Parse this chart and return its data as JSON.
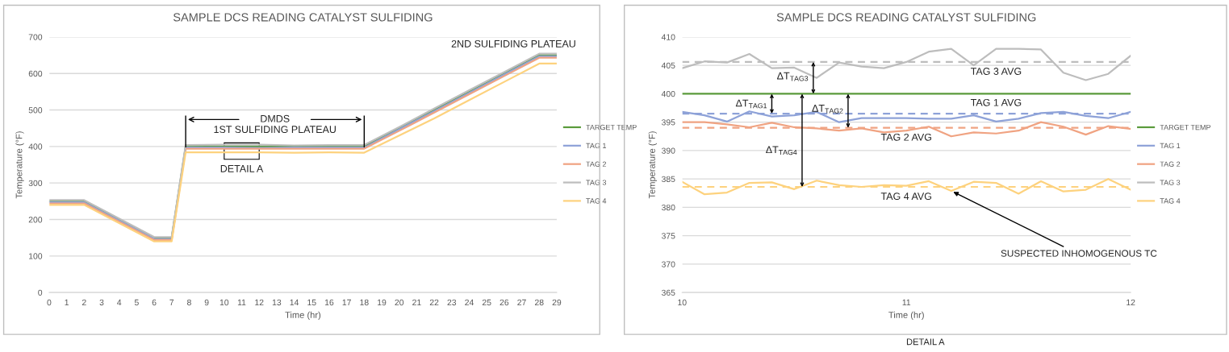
{
  "chart_data": [
    {
      "type": "line",
      "title": "SAMPLE DCS READING CATALYST SULFIDING",
      "xlabel": "Time (hr)",
      "ylabel": "Temperature (°F)",
      "x": [
        0,
        2,
        6,
        7,
        7.8,
        10,
        12,
        14,
        16,
        18,
        20,
        22,
        24,
        26,
        28,
        29
      ],
      "series": [
        {
          "name": "TARGET TEMP",
          "color": "#5b9b3c",
          "values": [
            250,
            250,
            150,
            150,
            400,
            400,
            400,
            400,
            400,
            400,
            450,
            500,
            550,
            600,
            650,
            650
          ]
        },
        {
          "name": "TAG 1",
          "color": "#8ea2d8",
          "values": [
            247,
            247,
            147,
            147,
            397,
            397,
            396,
            397,
            397,
            397,
            447,
            497,
            547,
            597,
            647,
            647
          ]
        },
        {
          "name": "TAG 2",
          "color": "#f0a382",
          "values": [
            244,
            244,
            144,
            144,
            394,
            394,
            394,
            394,
            394,
            394,
            443,
            493,
            543,
            593,
            643,
            643
          ]
        },
        {
          "name": "TAG 3",
          "color": "#bdbdbd",
          "values": [
            253,
            253,
            152,
            152,
            404,
            405,
            405,
            403,
            404,
            404,
            453,
            504,
            554,
            604,
            654,
            654
          ]
        },
        {
          "name": "TAG 4",
          "color": "#fdd27e",
          "values": [
            240,
            240,
            140,
            140,
            384,
            384,
            384,
            383,
            384,
            383,
            430,
            477,
            527,
            577,
            627,
            627
          ]
        }
      ],
      "xlim": [
        0,
        29
      ],
      "xticks": [
        0,
        1,
        2,
        3,
        4,
        5,
        6,
        7,
        8,
        9,
        10,
        11,
        12,
        13,
        14,
        15,
        16,
        17,
        18,
        19,
        20,
        21,
        22,
        23,
        24,
        25,
        26,
        27,
        28,
        29
      ],
      "ylim": [
        0,
        700
      ],
      "yticks": [
        0,
        100,
        200,
        300,
        400,
        500,
        600,
        700
      ],
      "annotations": [
        "DMDS",
        "1ST SULFIDING PLATEAU",
        "2ND SULFIDING PLATEAU",
        "DETAIL A"
      ],
      "grid": "y",
      "legend": "right",
      "marker": "none",
      "line_style": "solid"
    },
    {
      "type": "line",
      "title": "SAMPLE DCS READING CATALYST SULFIDING",
      "xlabel": "Time (hr)",
      "ylabel": "Temperature (°F)",
      "x": [
        10,
        10.1,
        10.2,
        10.3,
        10.4,
        10.5,
        10.6,
        10.7,
        10.8,
        10.9,
        11,
        11.1,
        11.2,
        11.3,
        11.4,
        11.5,
        11.6,
        11.7,
        11.8,
        11.9,
        12
      ],
      "series": [
        {
          "name": "TARGET TEMP",
          "color": "#5b9b3c",
          "values": [
            400,
            400,
            400,
            400,
            400,
            400,
            400,
            400,
            400,
            400,
            400,
            400,
            400,
            400,
            400,
            400,
            400,
            400,
            400,
            400,
            400
          ]
        },
        {
          "name": "TAG 1",
          "color": "#8ea2d8",
          "values": [
            396.8,
            396.2,
            395.1,
            396.9,
            396.0,
            396.2,
            396.8,
            395.0,
            395.7,
            395.7,
            395.7,
            395.6,
            395.6,
            396.2,
            395.1,
            395.6,
            396.6,
            396.8,
            396.1,
            395.7,
            396.8
          ]
        },
        {
          "name": "TAG 2",
          "color": "#f0a382",
          "values": [
            395.0,
            395.0,
            394.6,
            394.1,
            394.9,
            394.1,
            393.9,
            393.5,
            393.9,
            393.2,
            393.5,
            394.2,
            392.5,
            393.2,
            393.0,
            393.5,
            395.0,
            394.2,
            392.8,
            394.3,
            393.8
          ]
        },
        {
          "name": "TAG 3",
          "color": "#bdbdbd",
          "values": [
            404.5,
            405.7,
            405.5,
            407.0,
            404.5,
            404.6,
            402.8,
            405.5,
            404.8,
            404.5,
            405.6,
            407.4,
            407.9,
            405.0,
            407.9,
            407.9,
            407.8,
            403.7,
            402.4,
            403.5,
            406.7
          ]
        },
        {
          "name": "TAG 4",
          "color": "#fdd27e",
          "values": [
            384.5,
            382.3,
            382.6,
            384.3,
            384.4,
            383.2,
            384.7,
            383.9,
            383.6,
            383.9,
            383.8,
            384.6,
            382.9,
            384.5,
            384.3,
            382.4,
            384.6,
            382.8,
            383.1,
            385.0,
            383.1
          ]
        }
      ],
      "xlim": [
        10,
        12
      ],
      "xticks": [
        10,
        11,
        12
      ],
      "ylim": [
        365,
        410
      ],
      "yticks": [
        365,
        370,
        375,
        380,
        385,
        390,
        395,
        400,
        405,
        410
      ],
      "ref_lines": [
        {
          "axis": "y",
          "value": 396.5,
          "label": "TAG 1 AVG",
          "color": "#8ea2d8",
          "line_style": "dashed"
        },
        {
          "axis": "y",
          "value": 394.0,
          "label": "TAG 2 AVG",
          "color": "#f0a382",
          "line_style": "dashed"
        },
        {
          "axis": "y",
          "value": 405.6,
          "label": "TAG 3 AVG",
          "color": "#bdbdbd",
          "line_style": "dashed"
        },
        {
          "axis": "y",
          "value": 383.6,
          "label": "TAG 4 AVG",
          "color": "#fdd27e",
          "line_style": "dashed"
        }
      ],
      "annotations": [
        "ΔT$_{TAG1}$",
        "ΔT$_{TAG2}$",
        "ΔT$_{TAG3}$",
        "ΔT$_{TAG4}$",
        {
          "text": "SUSPECTED INHOMOGENOUS TC",
          "x": 11.2,
          "y": 382.9
        },
        "DETAIL A"
      ],
      "grid": "y",
      "legend": "right",
      "marker": "none",
      "line_style": "solid"
    }
  ]
}
